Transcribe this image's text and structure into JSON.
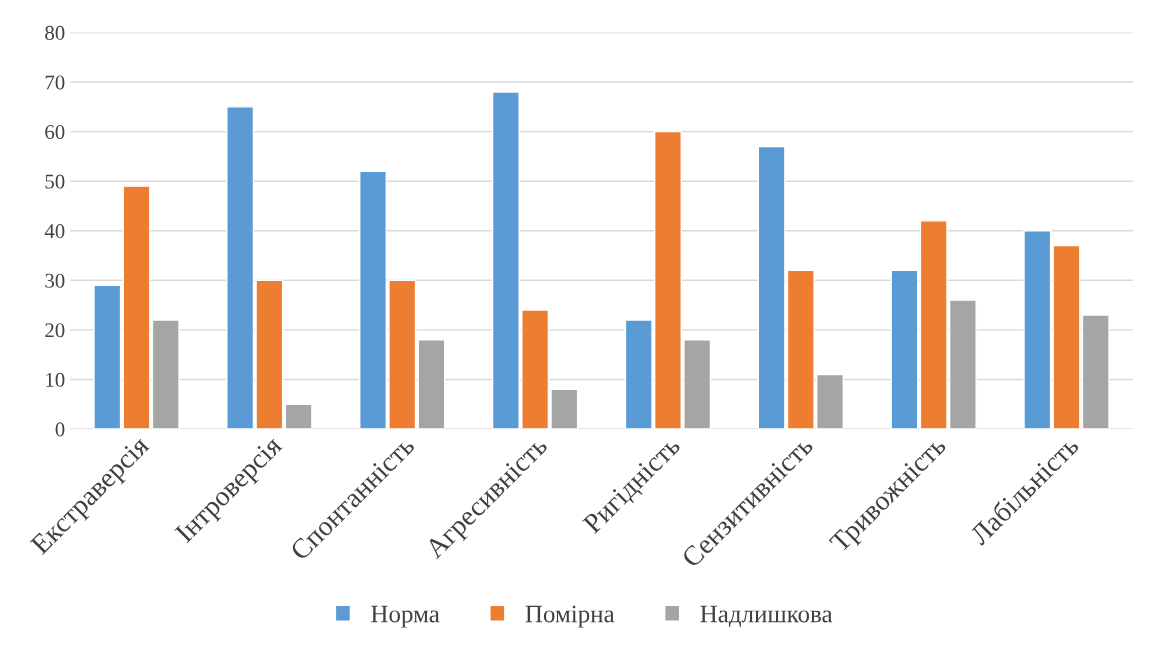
{
  "chart_data": {
    "type": "bar",
    "categories": [
      "Екстраверсія",
      "Інтроверсія",
      "Спонтанність",
      "Агресивність",
      "Ригідність",
      "Сензитивність",
      "Тривожність",
      "Лабільність"
    ],
    "series": [
      {
        "name": "Норма",
        "color": "#5b9bd5",
        "values": [
          29,
          65,
          52,
          68,
          22,
          57,
          32,
          40
        ]
      },
      {
        "name": "Помірна",
        "color": "#ed7d31",
        "values": [
          49,
          30,
          30,
          24,
          60,
          32,
          42,
          37
        ]
      },
      {
        "name": "Надлишкова",
        "color": "#a5a5a5",
        "values": [
          22,
          5,
          18,
          8,
          18,
          11,
          26,
          23
        ]
      }
    ],
    "ylim": [
      0,
      80
    ],
    "yticks": [
      0,
      10,
      20,
      30,
      40,
      50,
      60,
      70,
      80
    ],
    "grid": "y",
    "legend": "bottom"
  }
}
